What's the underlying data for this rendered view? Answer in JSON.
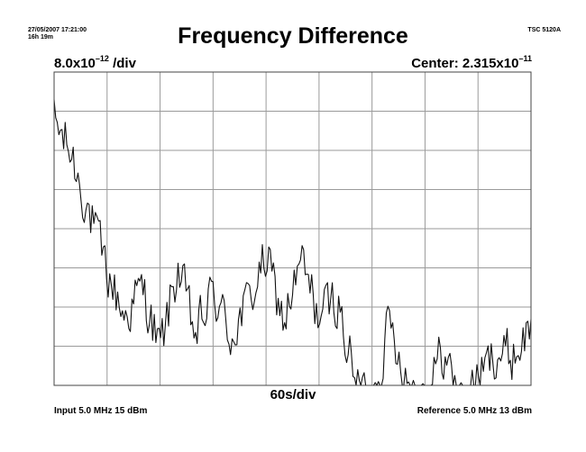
{
  "header": {
    "timestamp": "27/05/2007 17:21:00",
    "duration": "16h 19m",
    "instrument": "TSC 5120A"
  },
  "scale_base": "8.0x10",
  "scale_exp": "–12",
  "scale_unit": " /div",
  "center_base": "Center: 2.315x10",
  "center_exp": "–11",
  "footer": {
    "input": "Input 5.0 MHz 15 dBm",
    "reference": "Reference 5.0 MHz 13 dBm"
  },
  "colors": {
    "trace": "#111111",
    "grid": "#9a9a9a",
    "frame": "#444444"
  },
  "chart_data": {
    "type": "line",
    "title": "Frequency Difference",
    "xlabel": "60s/div",
    "x_divisions": 9,
    "y_divisions": 8,
    "ylim": [
      -3.2e-11,
      3.2e-11
    ],
    "grid": true,
    "x_unit": "s",
    "series": [
      {
        "x": [
          0,
          20,
          40,
          60,
          80,
          100,
          120,
          140,
          160,
          180,
          200,
          220,
          240,
          260,
          280,
          300,
          320,
          340,
          360,
          380,
          400,
          420,
          440,
          460,
          480,
          500,
          520,
          540
        ],
        "y": [
          2.2e-11,
          1.5e-11,
          3e-12,
          -9e-12,
          -1.8e-11,
          -1.2e-11,
          -2.5e-11,
          -8e-12,
          -2.2e-11,
          -1.3e-11,
          -2.2e-11,
          -1.5e-11,
          -6e-12,
          -1.9e-11,
          -7e-12,
          -1.8e-11,
          -1.4e-11,
          -3.1e-11,
          -3.5e-11,
          -1.9e-11,
          -3.1e-11,
          -3.4e-11,
          -2.5e-11,
          -3.5e-11,
          -3.1e-11,
          -2.5e-11,
          -2.6e-11,
          -2e-11
        ]
      }
    ]
  }
}
